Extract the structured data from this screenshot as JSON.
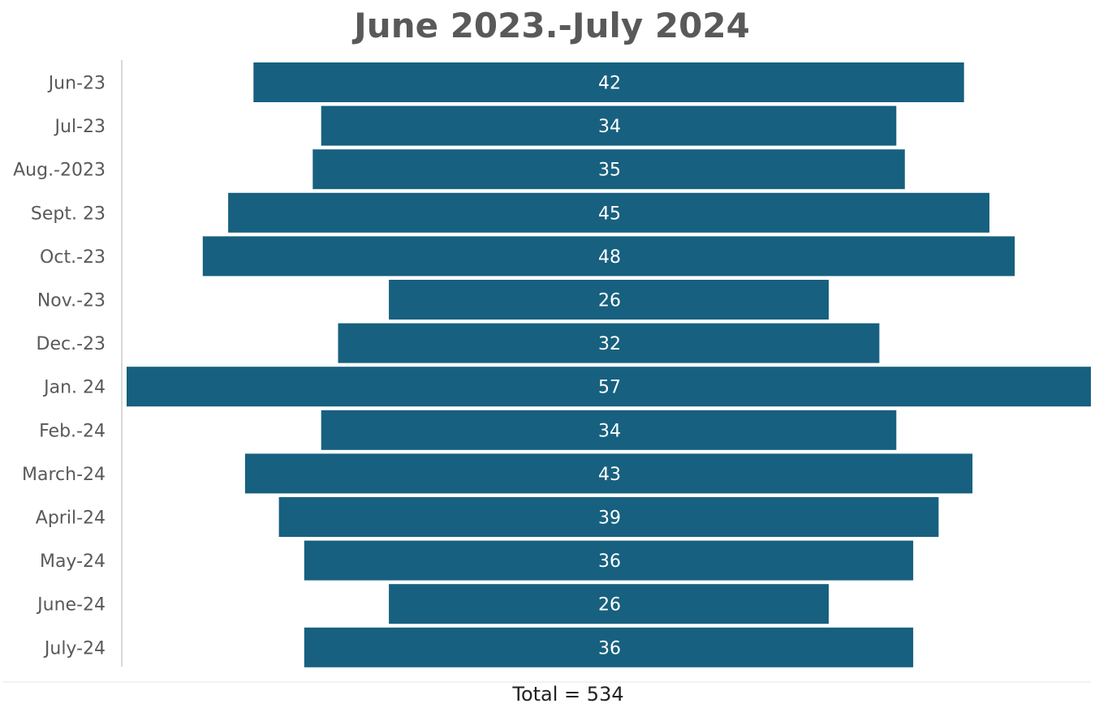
{
  "chart_data": {
    "type": "bar",
    "orientation": "horizontal",
    "style": "funnel",
    "title": "June 2023.-July 2024",
    "categories": [
      "Jun-23",
      "Jul-23",
      "Aug.-2023",
      "Sept. 23",
      "Oct.-23",
      "Nov.-23",
      "Dec.-23",
      "Jan. 24",
      "Feb.-24",
      "March-24",
      "April-24",
      "May-24",
      "June-24",
      "July-24"
    ],
    "values": [
      42,
      34,
      35,
      45,
      48,
      26,
      32,
      57,
      34,
      43,
      39,
      36,
      26,
      36
    ],
    "data_labels": true,
    "bar_color": "#17607f",
    "grid": false,
    "legend": "none"
  },
  "footer": {
    "text": "Total = 534"
  }
}
